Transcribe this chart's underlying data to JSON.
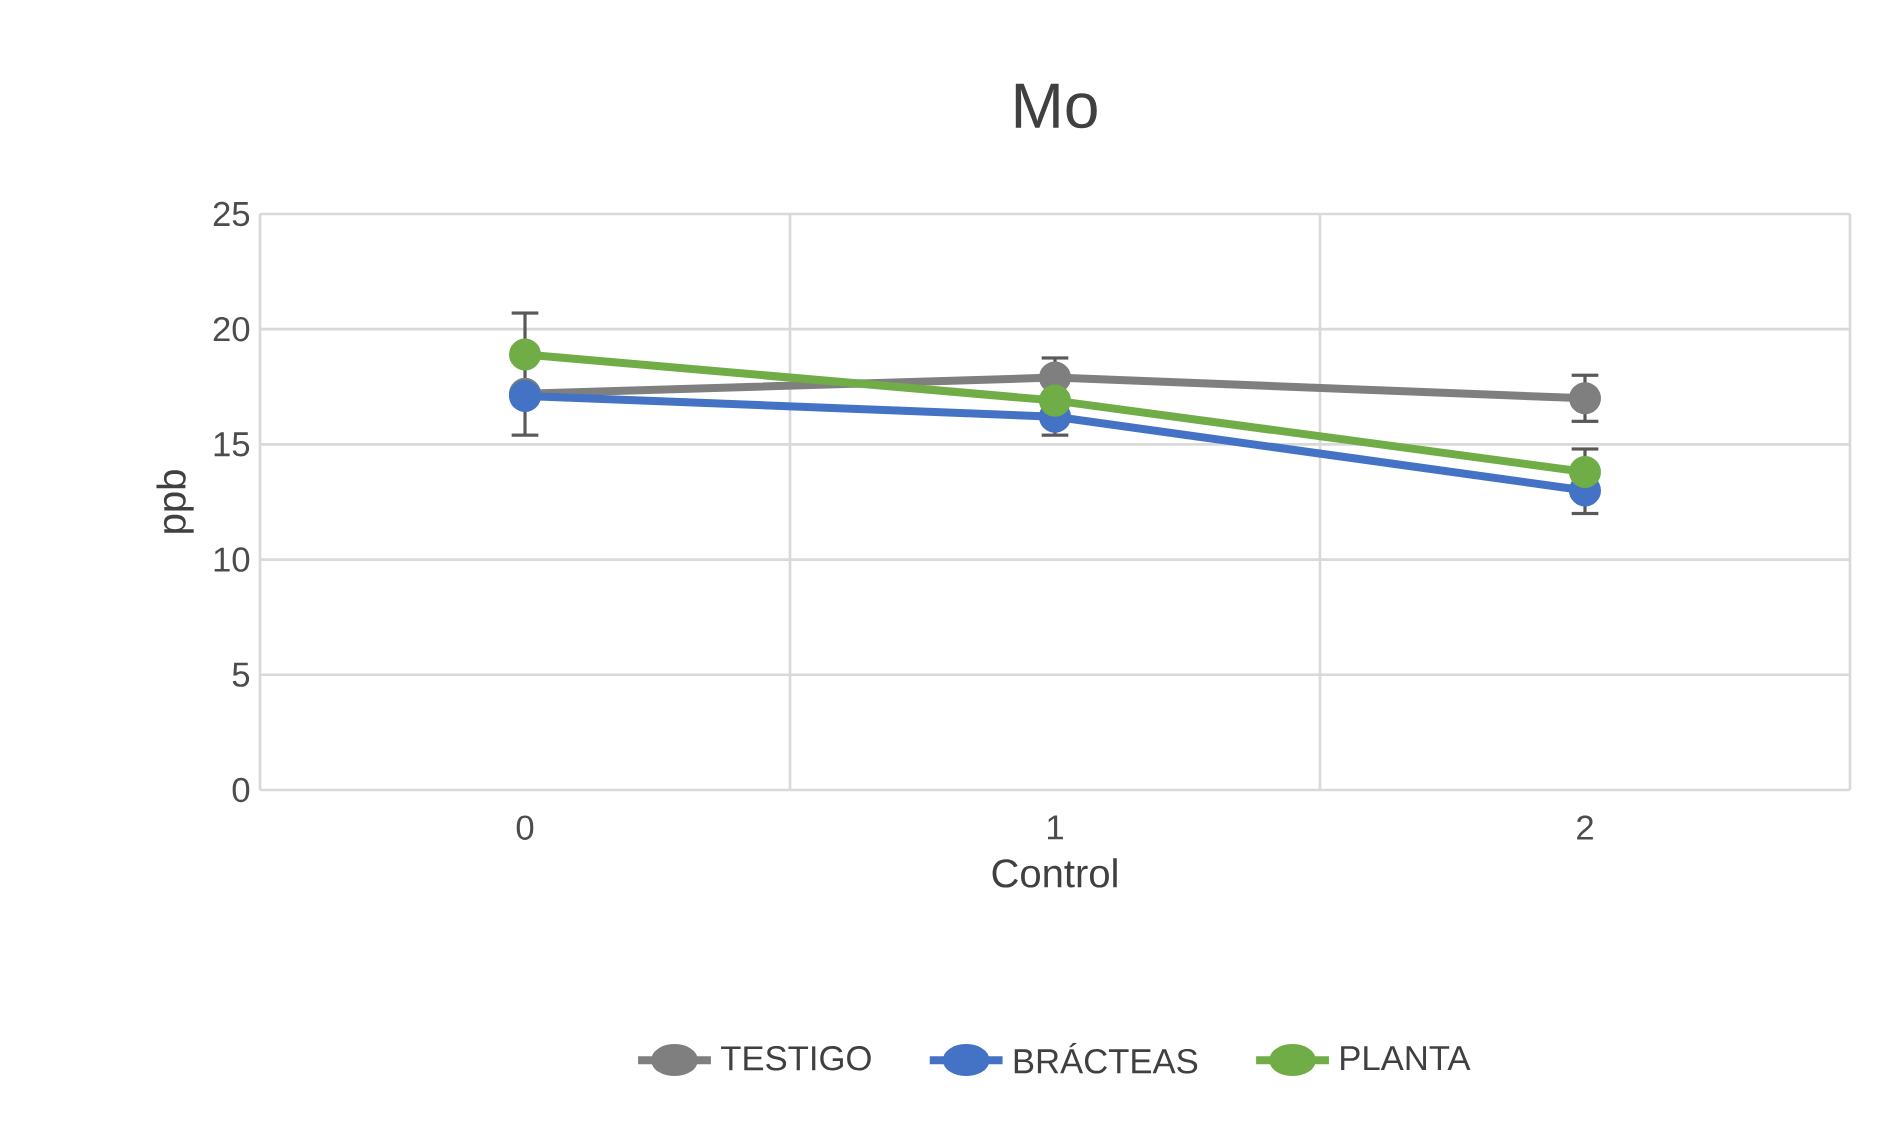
{
  "chart_data": {
    "type": "line",
    "title": "Mo",
    "xlabel": "Control",
    "ylabel": "ppb",
    "categories": [
      "0",
      "1",
      "2"
    ],
    "series": [
      {
        "name": "TESTIGO",
        "color": "#7f7f7f",
        "values": [
          17.2,
          17.9,
          17.0
        ],
        "errors": [
          null,
          [
            15.4,
            18.75
          ],
          1.0
        ]
      },
      {
        "name": "BRÁCTEAS",
        "color": "#4472c4",
        "values": [
          17.1,
          16.2,
          13.0
        ]
      },
      {
        "name": "PLANTA",
        "color": "#70ad47",
        "values": [
          18.9,
          16.9,
          13.8
        ],
        "errors": [
          [
            15.4,
            20.7
          ],
          null,
          [
            12.0,
            14.8
          ]
        ]
      }
    ],
    "ylim": [
      0,
      25
    ],
    "yticks": [
      0,
      5,
      10,
      15,
      20,
      25
    ],
    "grid": true,
    "legend": "bottom",
    "marker": "circle"
  }
}
